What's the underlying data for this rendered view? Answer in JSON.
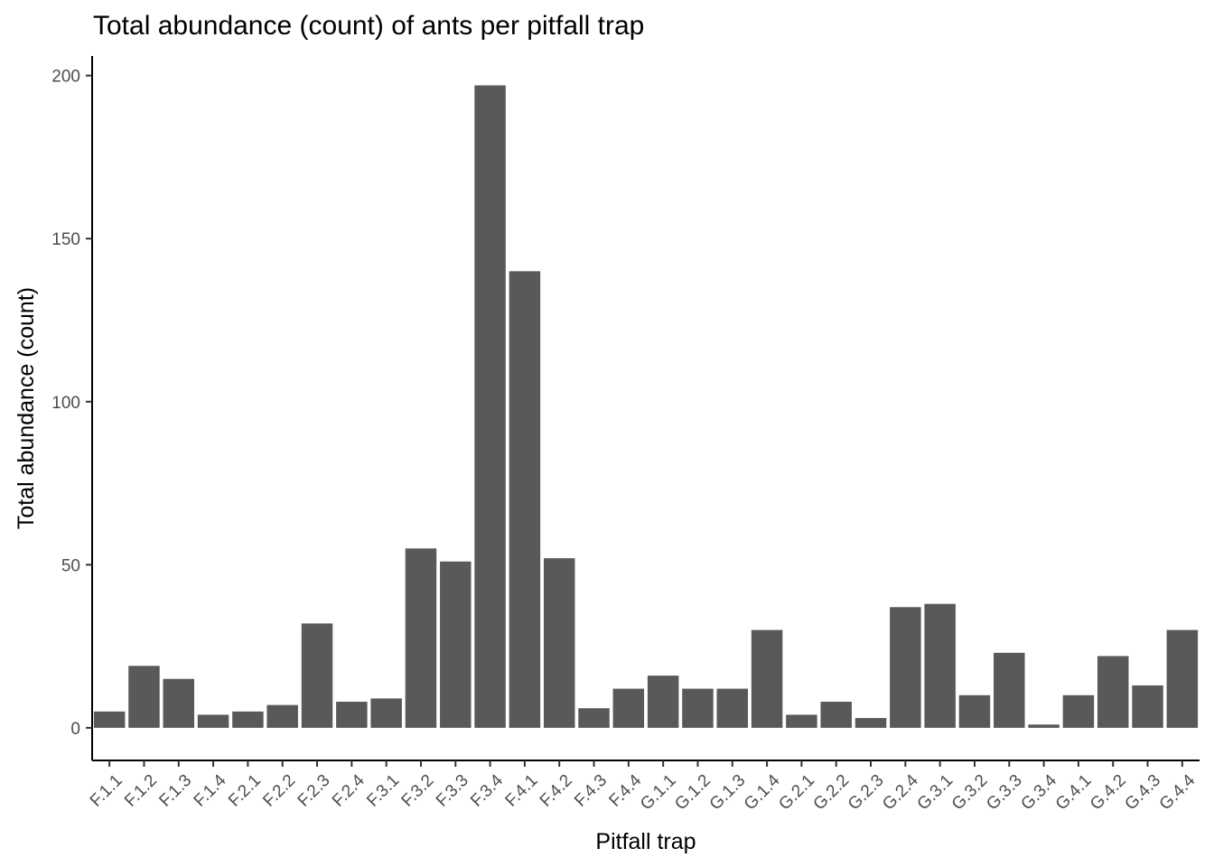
{
  "chart_data": {
    "type": "bar",
    "title": "Total abundance (count) of ants per pitfall trap",
    "xlabel": "Pitfall trap",
    "ylabel": "Total abundance (count)",
    "categories": [
      "F.1.1",
      "F.1.2",
      "F.1.3",
      "F.1.4",
      "F.2.1",
      "F.2.2",
      "F.2.3",
      "F.2.4",
      "F.3.1",
      "F.3.2",
      "F.3.3",
      "F.3.4",
      "F.4.1",
      "F.4.2",
      "F.4.3",
      "F.4.4",
      "G.1.1",
      "G.1.2",
      "G.1.3",
      "G.1.4",
      "G.2.1",
      "G.2.2",
      "G.2.3",
      "G.2.4",
      "G.3.1",
      "G.3.2",
      "G.3.3",
      "G.3.4",
      "G.4.1",
      "G.4.2",
      "G.4.3",
      "G.4.4"
    ],
    "values": [
      5,
      19,
      15,
      4,
      5,
      7,
      32,
      8,
      9,
      55,
      51,
      197,
      140,
      52,
      6,
      12,
      16,
      12,
      12,
      30,
      4,
      8,
      3,
      37,
      38,
      10,
      23,
      1,
      10,
      22,
      13,
      30
    ],
    "ylim": [
      -10,
      206
    ],
    "yticks": [
      0,
      50,
      100,
      150,
      200
    ],
    "grid": false,
    "bar_color": "#595959",
    "axis_color": "#000000"
  }
}
